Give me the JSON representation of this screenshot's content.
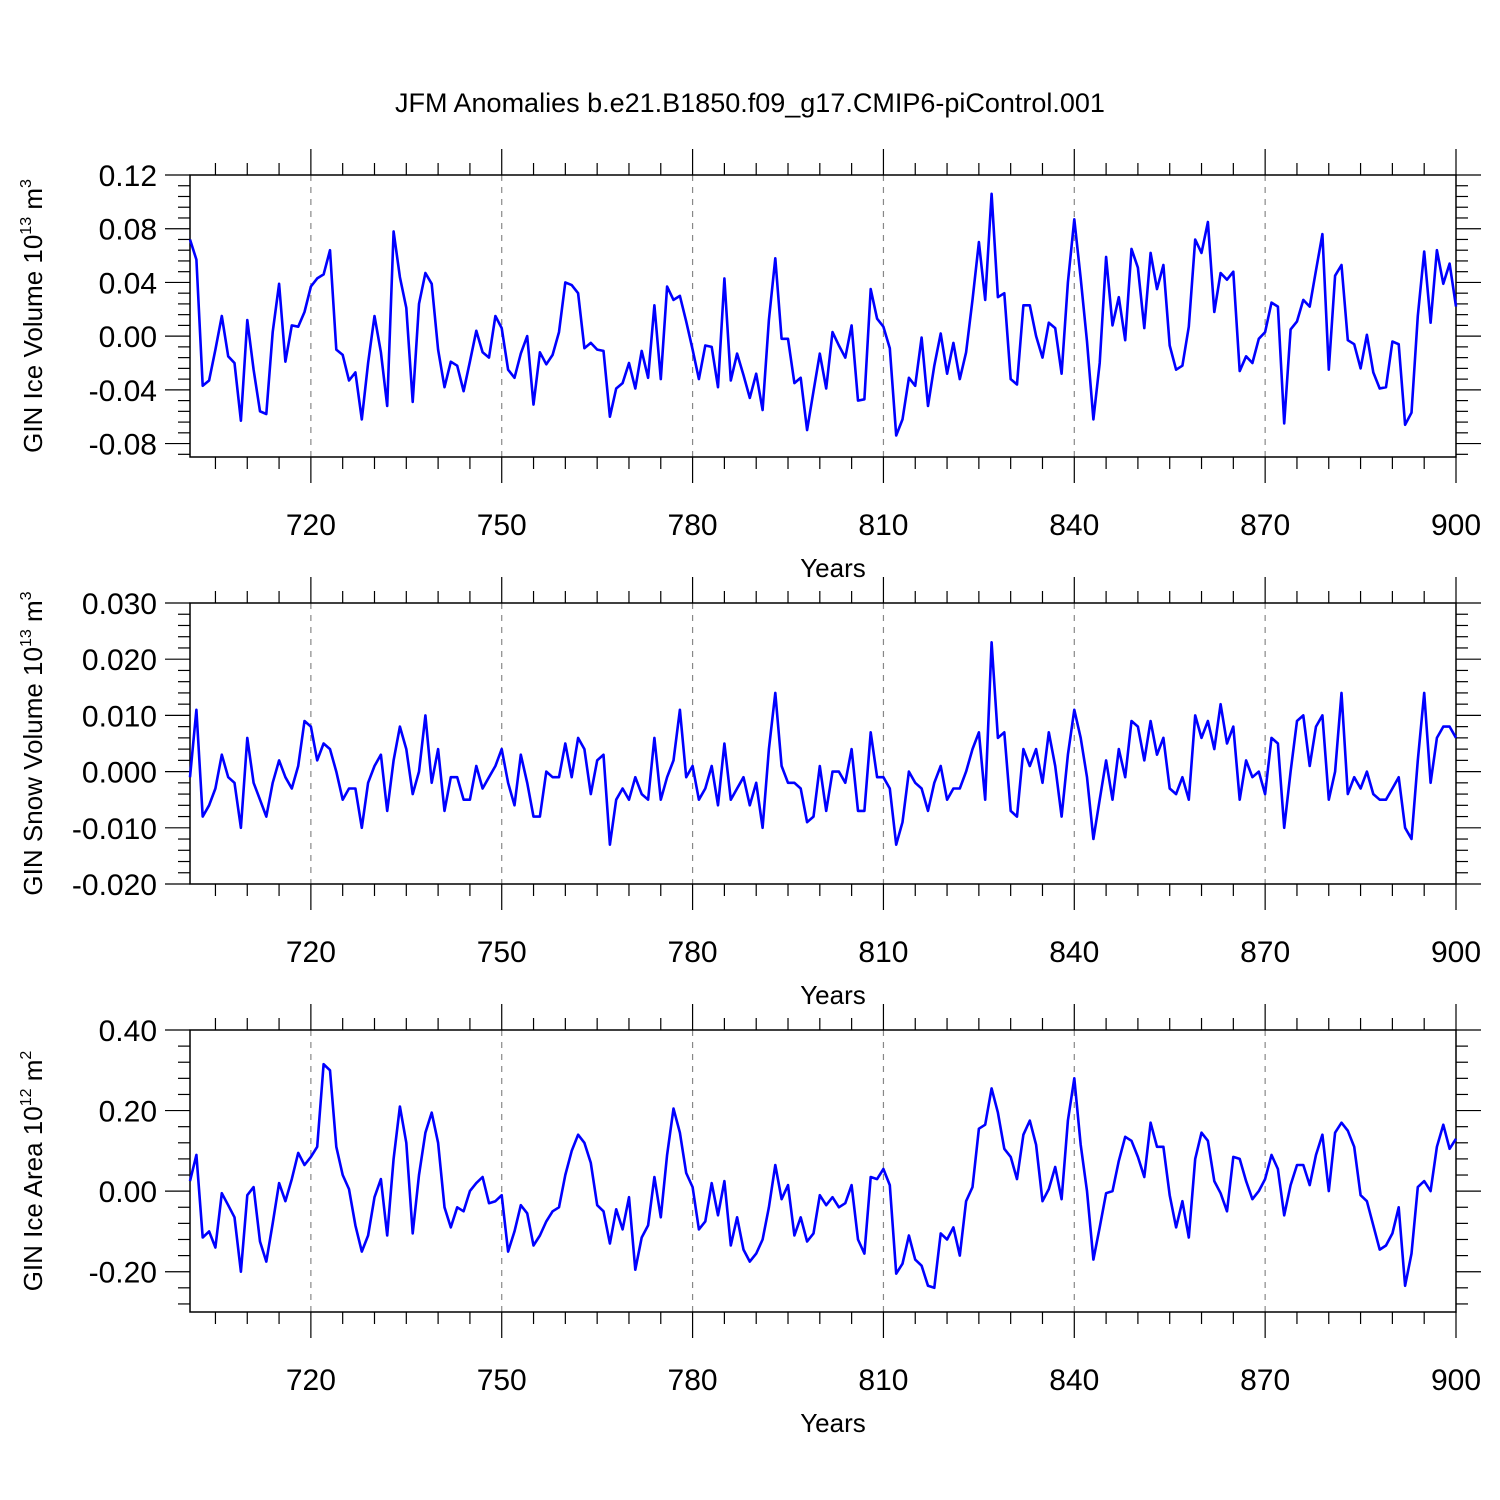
{
  "figure": {
    "title": "JFM Anomalies b.e21.B1850.f09_g17.CMIP6-piControl.001"
  },
  "chart_data": [
    {
      "type": "line",
      "ylabel": "GIN Ice Volume",
      "ylabel_base": "10",
      "ylabel_exp": "13",
      "ylabel_unit": "m",
      "ylabel_unit_exp": "3",
      "xlabel": "Years",
      "xlim": [
        701,
        900
      ],
      "ylim": [
        -0.09,
        0.12
      ],
      "yticks": [
        -0.08,
        -0.04,
        0.0,
        0.04,
        0.08,
        0.12
      ],
      "ytick_labels": [
        "-0.08",
        "-0.04",
        "0.00",
        "0.04",
        "0.08",
        "0.12"
      ],
      "xticks": [
        720,
        750,
        780,
        810,
        840,
        870,
        900
      ],
      "xtick_labels": [
        "720",
        "750",
        "780",
        "810",
        "840",
        "870",
        "900"
      ],
      "grid": "vertical dashed at major x ticks",
      "series": [
        {
          "color": "#0000ff",
          "x_start": 701,
          "x_step": 1,
          "values": [
            0.072,
            0.057,
            -0.037,
            -0.033,
            -0.01,
            0.015,
            -0.015,
            -0.02,
            -0.063,
            0.012,
            -0.025,
            -0.056,
            -0.058,
            0.003,
            0.039,
            -0.019,
            0.008,
            0.007,
            0.018,
            0.037,
            0.043,
            0.046,
            0.064,
            -0.01,
            -0.014,
            -0.033,
            -0.027,
            -0.062,
            -0.02,
            0.015,
            -0.012,
            -0.052,
            0.078,
            0.044,
            0.021,
            -0.049,
            0.024,
            0.047,
            0.039,
            -0.01,
            -0.038,
            -0.019,
            -0.022,
            -0.041,
            -0.019,
            0.004,
            -0.012,
            -0.016,
            0.015,
            0.006,
            -0.025,
            -0.031,
            -0.013,
            0.0,
            -0.051,
            -0.012,
            -0.021,
            -0.014,
            0.003,
            0.04,
            0.038,
            0.032,
            -0.009,
            -0.005,
            -0.01,
            -0.011,
            -0.06,
            -0.039,
            -0.035,
            -0.02,
            -0.039,
            -0.011,
            -0.031,
            0.023,
            -0.032,
            0.037,
            0.027,
            0.03,
            0.011,
            -0.01,
            -0.032,
            -0.007,
            -0.008,
            -0.038,
            0.043,
            -0.033,
            -0.013,
            -0.029,
            -0.046,
            -0.028,
            -0.055,
            0.012,
            0.058,
            -0.002,
            -0.002,
            -0.035,
            -0.031,
            -0.07,
            -0.041,
            -0.013,
            -0.039,
            0.003,
            -0.007,
            -0.016,
            0.008,
            -0.048,
            -0.047,
            0.035,
            0.013,
            0.007,
            -0.009,
            -0.074,
            -0.062,
            -0.031,
            -0.037,
            -0.001,
            -0.052,
            -0.022,
            0.002,
            -0.028,
            -0.005,
            -0.032,
            -0.012,
            0.027,
            0.07,
            0.027,
            0.106,
            0.029,
            0.032,
            -0.032,
            -0.036,
            0.023,
            0.023,
            0.0,
            -0.016,
            0.01,
            0.006,
            -0.028,
            0.04,
            0.087,
            0.043,
            -0.004,
            -0.062,
            -0.02,
            0.059,
            0.008,
            0.029,
            -0.003,
            0.065,
            0.051,
            0.006,
            0.062,
            0.035,
            0.053,
            -0.007,
            -0.025,
            -0.022,
            0.007,
            0.072,
            0.062,
            0.085,
            0.018,
            0.047,
            0.042,
            0.048,
            -0.026,
            -0.015,
            -0.02,
            -0.002,
            0.003,
            0.025,
            0.022,
            -0.065,
            0.005,
            0.011,
            0.027,
            0.022,
            0.049,
            0.076,
            -0.025,
            0.045,
            0.053,
            -0.003,
            -0.006,
            -0.024,
            0.001,
            -0.027,
            -0.039,
            -0.038,
            -0.004,
            -0.006,
            -0.066,
            -0.057,
            0.015,
            0.063,
            0.01,
            0.064,
            0.039,
            0.054,
            0.022
          ]
        }
      ]
    },
    {
      "type": "line",
      "ylabel": "GIN Snow Volume",
      "ylabel_base": "10",
      "ylabel_exp": "13",
      "ylabel_unit": "m",
      "ylabel_unit_exp": "3",
      "xlabel": "Years",
      "xlim": [
        701,
        900
      ],
      "ylim": [
        -0.02,
        0.03
      ],
      "yticks": [
        -0.02,
        -0.01,
        0.0,
        0.01,
        0.02,
        0.03
      ],
      "ytick_labels": [
        "-0.020",
        "-0.010",
        "0.000",
        "0.010",
        "0.020",
        "0.030"
      ],
      "xticks": [
        720,
        750,
        780,
        810,
        840,
        870,
        900
      ],
      "xtick_labels": [
        "720",
        "750",
        "780",
        "810",
        "840",
        "870",
        "900"
      ],
      "grid": "vertical dashed at major x ticks",
      "series": [
        {
          "color": "#0000ff",
          "x_start": 701,
          "x_step": 1,
          "values": [
            -0.001,
            0.011,
            -0.008,
            -0.006,
            -0.003,
            0.003,
            -0.001,
            -0.002,
            -0.01,
            0.006,
            -0.002,
            -0.005,
            -0.008,
            -0.002,
            0.002,
            -0.001,
            -0.003,
            0.001,
            0.009,
            0.008,
            0.002,
            0.005,
            0.004,
            0.0,
            -0.005,
            -0.003,
            -0.003,
            -0.01,
            -0.002,
            0.001,
            0.003,
            -0.007,
            0.002,
            0.008,
            0.004,
            -0.004,
            0.0,
            0.01,
            -0.002,
            0.004,
            -0.007,
            -0.001,
            -0.001,
            -0.005,
            -0.005,
            0.001,
            -0.003,
            -0.001,
            0.001,
            0.004,
            -0.002,
            -0.006,
            0.003,
            -0.002,
            -0.008,
            -0.008,
            0.0,
            -0.001,
            -0.001,
            0.005,
            -0.001,
            0.006,
            0.004,
            -0.004,
            0.002,
            0.003,
            -0.013,
            -0.005,
            -0.003,
            -0.005,
            -0.001,
            -0.004,
            -0.005,
            0.006,
            -0.005,
            -0.001,
            0.002,
            0.011,
            -0.001,
            0.001,
            -0.005,
            -0.003,
            0.001,
            -0.006,
            0.005,
            -0.005,
            -0.003,
            -0.001,
            -0.006,
            -0.002,
            -0.01,
            0.004,
            0.014,
            0.001,
            -0.002,
            -0.002,
            -0.003,
            -0.009,
            -0.008,
            0.001,
            -0.007,
            0.0,
            0.0,
            -0.002,
            0.004,
            -0.007,
            -0.007,
            0.007,
            -0.001,
            -0.001,
            -0.003,
            -0.013,
            -0.009,
            0.0,
            -0.002,
            -0.003,
            -0.007,
            -0.002,
            0.001,
            -0.005,
            -0.003,
            -0.003,
            0.0,
            0.004,
            0.007,
            -0.005,
            0.023,
            0.006,
            0.007,
            -0.007,
            -0.008,
            0.004,
            0.001,
            0.004,
            -0.002,
            0.007,
            0.001,
            -0.008,
            0.003,
            0.011,
            0.006,
            -0.001,
            -0.012,
            -0.005,
            0.002,
            -0.005,
            0.004,
            -0.001,
            0.009,
            0.008,
            0.002,
            0.009,
            0.003,
            0.006,
            -0.003,
            -0.004,
            -0.001,
            -0.005,
            0.01,
            0.006,
            0.009,
            0.004,
            0.012,
            0.005,
            0.008,
            -0.005,
            0.002,
            -0.001,
            0.0,
            -0.004,
            0.006,
            0.005,
            -0.01,
            0.0,
            0.009,
            0.01,
            0.001,
            0.008,
            0.01,
            -0.005,
            0.0,
            0.014,
            -0.004,
            -0.001,
            -0.003,
            0.0,
            -0.004,
            -0.005,
            -0.005,
            -0.003,
            -0.001,
            -0.01,
            -0.012,
            0.002,
            0.014,
            -0.002,
            0.006,
            0.008,
            0.008,
            0.006
          ]
        }
      ]
    },
    {
      "type": "line",
      "ylabel": "GIN Ice Area",
      "ylabel_base": "10",
      "ylabel_exp": "12",
      "ylabel_unit": "m",
      "ylabel_unit_exp": "2",
      "xlabel": "Years",
      "xlim": [
        701,
        900
      ],
      "ylim": [
        -0.3,
        0.4
      ],
      "yticks": [
        -0.2,
        0.0,
        0.2,
        0.4
      ],
      "ytick_labels": [
        "-0.20",
        "0.00",
        "0.20",
        "0.40"
      ],
      "xticks": [
        720,
        750,
        780,
        810,
        840,
        870,
        900
      ],
      "xtick_labels": [
        "720",
        "750",
        "780",
        "810",
        "840",
        "870",
        "900"
      ],
      "grid": "vertical dashed at major x ticks",
      "series": [
        {
          "color": "#0000ff",
          "x_start": 701,
          "x_step": 1,
          "values": [
            0.025,
            0.09,
            -0.115,
            -0.1,
            -0.14,
            -0.005,
            -0.035,
            -0.065,
            -0.2,
            -0.01,
            0.01,
            -0.125,
            -0.175,
            -0.08,
            0.02,
            -0.025,
            0.03,
            0.095,
            0.065,
            0.085,
            0.11,
            0.315,
            0.3,
            0.11,
            0.04,
            0.005,
            -0.085,
            -0.15,
            -0.11,
            -0.015,
            0.03,
            -0.11,
            0.08,
            0.21,
            0.12,
            -0.105,
            0.04,
            0.145,
            0.195,
            0.12,
            -0.04,
            -0.09,
            -0.04,
            -0.05,
            0.0,
            0.02,
            0.035,
            -0.03,
            -0.025,
            -0.01,
            -0.15,
            -0.1,
            -0.035,
            -0.055,
            -0.135,
            -0.11,
            -0.075,
            -0.05,
            -0.04,
            0.04,
            0.1,
            0.14,
            0.12,
            0.07,
            -0.035,
            -0.05,
            -0.13,
            -0.045,
            -0.095,
            -0.015,
            -0.195,
            -0.115,
            -0.085,
            0.035,
            -0.065,
            0.09,
            0.205,
            0.145,
            0.045,
            0.01,
            -0.095,
            -0.075,
            0.02,
            -0.06,
            0.025,
            -0.135,
            -0.065,
            -0.145,
            -0.175,
            -0.155,
            -0.12,
            -0.04,
            0.065,
            -0.02,
            0.015,
            -0.11,
            -0.065,
            -0.125,
            -0.105,
            -0.01,
            -0.035,
            -0.015,
            -0.04,
            -0.03,
            0.015,
            -0.12,
            -0.155,
            0.035,
            0.03,
            0.055,
            0.015,
            -0.205,
            -0.18,
            -0.11,
            -0.17,
            -0.185,
            -0.235,
            -0.24,
            -0.105,
            -0.12,
            -0.09,
            -0.16,
            -0.025,
            0.01,
            0.155,
            0.165,
            0.255,
            0.195,
            0.105,
            0.085,
            0.03,
            0.14,
            0.175,
            0.115,
            -0.025,
            0.005,
            0.06,
            -0.02,
            0.175,
            0.28,
            0.115,
            0.0,
            -0.17,
            -0.09,
            -0.005,
            0.0,
            0.075,
            0.135,
            0.125,
            0.085,
            0.035,
            0.17,
            0.11,
            0.11,
            -0.01,
            -0.09,
            -0.025,
            -0.115,
            0.08,
            0.145,
            0.125,
            0.025,
            -0.005,
            -0.05,
            0.085,
            0.08,
            0.025,
            -0.02,
            0.0,
            0.03,
            0.09,
            0.055,
            -0.06,
            0.015,
            0.065,
            0.065,
            0.015,
            0.09,
            0.14,
            0.0,
            0.145,
            0.17,
            0.15,
            0.11,
            -0.01,
            -0.025,
            -0.085,
            -0.145,
            -0.135,
            -0.105,
            -0.04,
            -0.235,
            -0.155,
            0.01,
            0.025,
            0.0,
            0.11,
            0.165,
            0.105,
            0.13
          ]
        }
      ]
    }
  ]
}
